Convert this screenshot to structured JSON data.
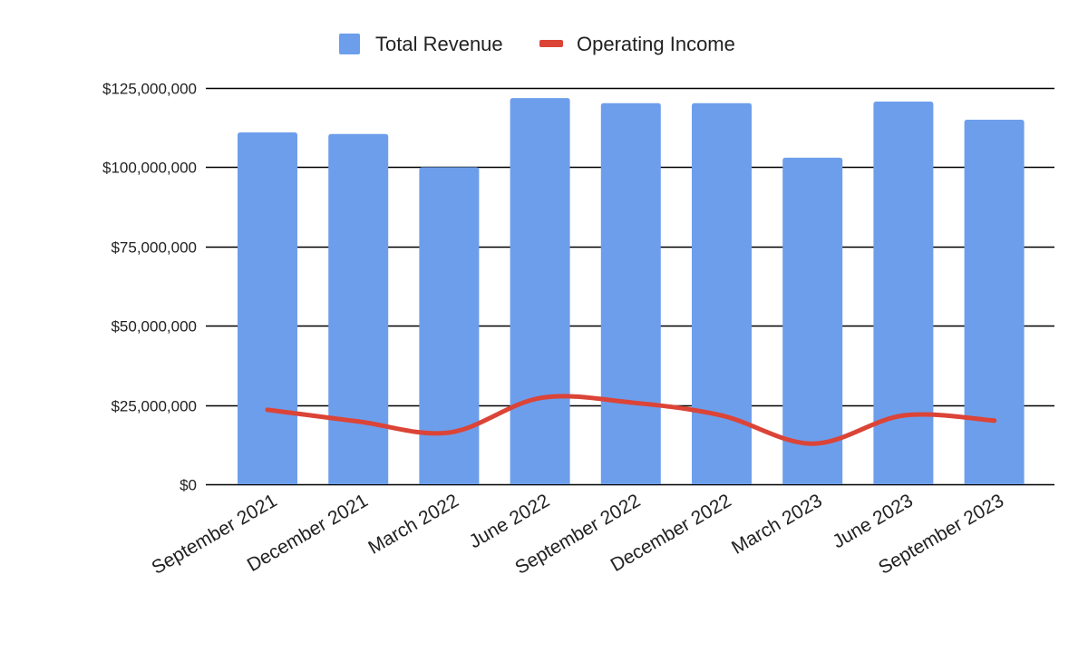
{
  "chart_data": {
    "type": "bar",
    "categories": [
      "September 2021",
      "December 2021",
      "March 2022",
      "June 2022",
      "September 2022",
      "December 2022",
      "March 2023",
      "June 2023",
      "September 2023"
    ],
    "series": [
      {
        "name": "Total Revenue",
        "type": "bar",
        "color": "#6d9eeb",
        "values": [
          111000000,
          110500000,
          100000000,
          121800000,
          120200000,
          120200000,
          103000000,
          120700000,
          115000000
        ]
      },
      {
        "name": "Operating Income",
        "type": "line",
        "color": "#db4437",
        "values": [
          23500000,
          19800000,
          16300000,
          27200000,
          25800000,
          21700000,
          12800000,
          21700000,
          20100000
        ]
      }
    ],
    "yticks": [
      "$0",
      "$25,000,000",
      "$50,000,000",
      "$75,000,000",
      "$100,000,000",
      "$125,000,000"
    ],
    "ylim": [
      0,
      125000000
    ],
    "grid": true,
    "legend_position": "top"
  }
}
